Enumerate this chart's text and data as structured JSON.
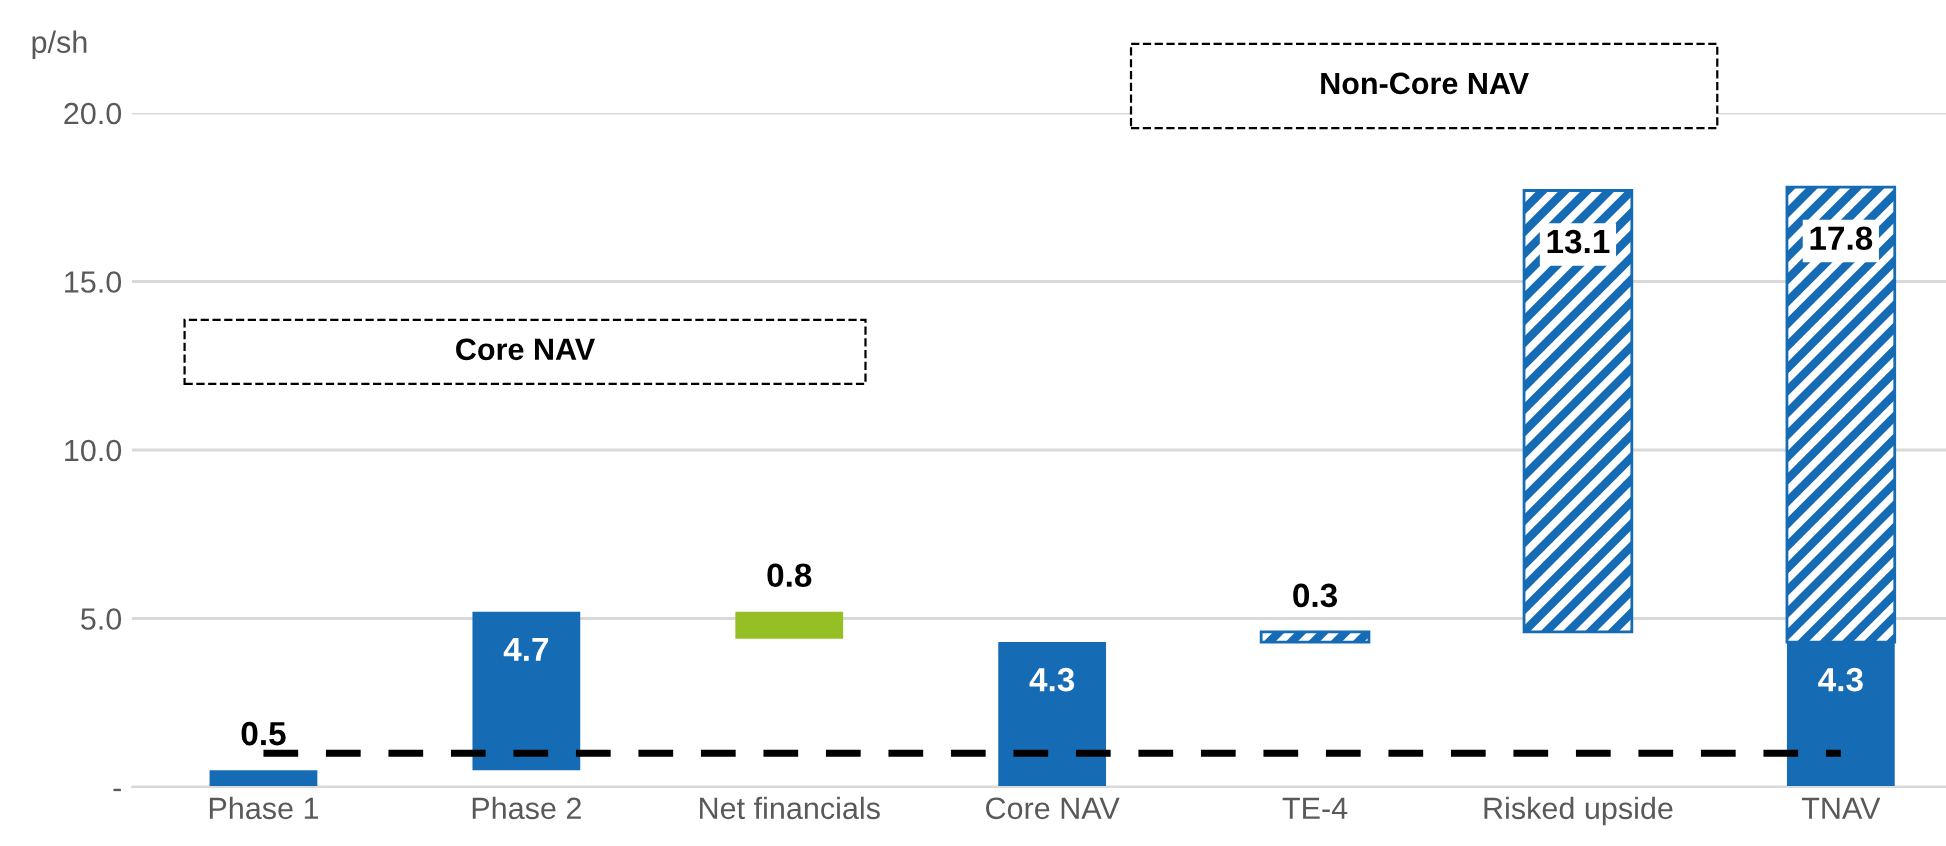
{
  "chart_data": {
    "type": "bar",
    "ylabel": "p/sh",
    "categories": [
      "Phase 1",
      "Phase 2",
      "Net financials",
      "Core NAV",
      "TE-4",
      "Risked upside",
      "TNAV"
    ],
    "series": [
      {
        "color": "#166bb5",
        "colors": [
          "#166bb5",
          "#166bb5",
          "#95bf25",
          "#166bb5",
          null,
          null,
          "#166bb5"
        ],
        "base": [
          0,
          0.5,
          4.4,
          0,
          null,
          null,
          0
        ],
        "values": [
          0.5,
          4.7,
          0.8,
          4.3,
          null,
          null,
          4.3
        ],
        "value_labels": [
          "0.5",
          "4.7",
          "0.8",
          "4.3",
          null,
          null,
          "4.3"
        ]
      },
      {
        "color": "#166bb5",
        "base": [
          null,
          null,
          null,
          null,
          4.3,
          4.6,
          4.3
        ],
        "values": [
          null,
          null,
          null,
          null,
          0.3,
          13.1,
          13.5
        ],
        "value_labels": [
          null,
          null,
          null,
          null,
          "0.3",
          "13.1",
          null
        ]
      }
    ],
    "totals": [
      null,
      null,
      null,
      null,
      null,
      null,
      "17.8"
    ],
    "ref_lines": [
      {
        "axis": "y",
        "value": 1.0,
        "color": "#000000",
        "line_style": "dashed"
      }
    ],
    "annotations": [
      "Core NAV",
      "Non-Core NAV"
    ],
    "ylim": [
      0,
      20
    ],
    "yticks": [
      {
        "value": 0,
        "label": "-"
      },
      {
        "value": 5,
        "label": "5.0"
      },
      {
        "value": 10,
        "label": "10.0"
      },
      {
        "value": 15,
        "label": "15.0"
      },
      {
        "value": 20,
        "label": "20.0"
      }
    ],
    "grid": "y",
    "legend": false
  }
}
